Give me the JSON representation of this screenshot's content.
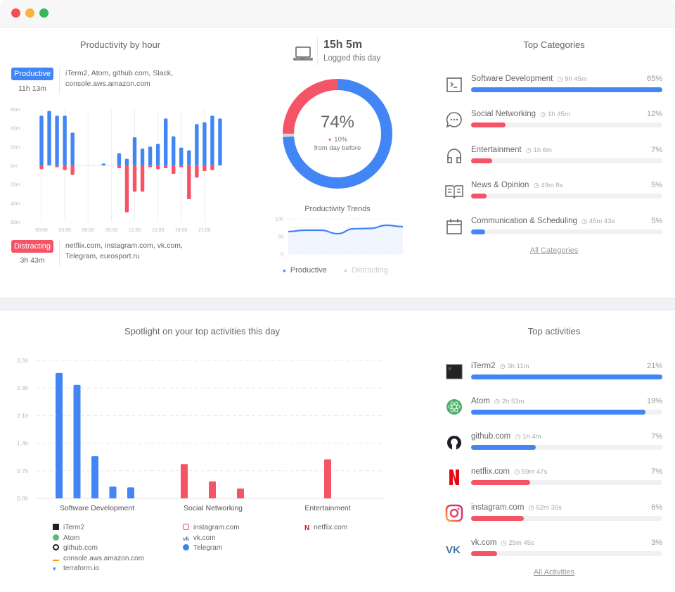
{
  "colors": {
    "productive": "#4285f4",
    "distracting": "#f55466",
    "track": "#f1f1f1",
    "neutral": "#d6d6d6"
  },
  "window": {
    "controls": [
      "close",
      "minimize",
      "maximize"
    ]
  },
  "productivity_by_hour": {
    "title": "Productivity by hour",
    "productive": {
      "label": "Productive",
      "time": "11h 13m",
      "apps": [
        "iTerm2, Atom, github.com, Slack,",
        "console.aws.amazon.com"
      ]
    },
    "distracting": {
      "label": "Distracting",
      "time": "3h 43m",
      "apps": [
        "netflix.com, instagram.com, vk.com,",
        "Telegram, eurosport.ru"
      ]
    }
  },
  "summary": {
    "icon": "laptop-icon",
    "logged_time": "15h 5m",
    "logged_label": "Logged this day",
    "percent": "74%",
    "change": "10%",
    "change_direction": "down",
    "change_label": "from day before",
    "donut": {
      "productive": 74,
      "distracting": 25,
      "neutral": 1
    }
  },
  "trends": {
    "title": "Productivity Trends",
    "legend": [
      {
        "label": "Productive",
        "active": true
      },
      {
        "label": "Distracting",
        "active": false
      }
    ]
  },
  "top_categories": {
    "title": "Top Categories",
    "items": [
      {
        "name": "Software Development",
        "time": "9h 45m",
        "percent": "65%",
        "fill": 100,
        "type": "productive",
        "icon": "terminal-icon"
      },
      {
        "name": "Social Networking",
        "time": "1h 45m",
        "percent": "12%",
        "fill": 18,
        "type": "distracting",
        "icon": "chat-bubble-icon"
      },
      {
        "name": "Entertainment",
        "time": "1h 6m",
        "percent": "7%",
        "fill": 11,
        "type": "distracting",
        "icon": "headphones-icon"
      },
      {
        "name": "News & Opinion",
        "time": "49m 8s",
        "percent": "5%",
        "fill": 8,
        "type": "distracting",
        "icon": "book-icon"
      },
      {
        "name": "Communication & Scheduling",
        "time": "45m 43s",
        "percent": "5%",
        "fill": 7.5,
        "type": "productive",
        "icon": "calendar-icon"
      }
    ],
    "link": "All Categories"
  },
  "spotlight": {
    "title": "Spotlight on your top activities this day",
    "legend_groups": [
      [
        {
          "label": "iTerm2",
          "icon": "iterm-icon"
        },
        {
          "label": "Atom",
          "icon": "atom-icon"
        },
        {
          "label": "github.com",
          "icon": "github-icon"
        },
        {
          "label": "console.aws.amazon.com",
          "icon": "aws-icon"
        },
        {
          "label": "terraform.io",
          "icon": "terraform-icon"
        }
      ],
      [
        {
          "label": "instagram.com",
          "icon": "instagram-icon"
        },
        {
          "label": "vk.com",
          "icon": "vk-icon"
        },
        {
          "label": "Telegram",
          "icon": "telegram-icon"
        }
      ],
      [
        {
          "label": "netflix.com",
          "icon": "netflix-icon"
        }
      ]
    ]
  },
  "top_activities": {
    "title": "Top activities",
    "items": [
      {
        "name": "iTerm2",
        "time": "3h 11m",
        "percent": "21%",
        "fill": 100,
        "type": "productive",
        "icon": "iterm-icon"
      },
      {
        "name": "Atom",
        "time": "2h 53m",
        "percent": "19%",
        "fill": 91,
        "type": "productive",
        "icon": "atom-icon"
      },
      {
        "name": "github.com",
        "time": "1h 4m",
        "percent": "7%",
        "fill": 34,
        "type": "productive",
        "icon": "github-icon"
      },
      {
        "name": "netflix.com",
        "time": "59m 47s",
        "percent": "7%",
        "fill": 31,
        "type": "distracting",
        "icon": "netflix-icon"
      },
      {
        "name": "instagram.com",
        "time": "52m 35s",
        "percent": "6%",
        "fill": 27.5,
        "type": "distracting",
        "icon": "instagram-icon"
      },
      {
        "name": "vk.com",
        "time": "25m 45s",
        "percent": "3%",
        "fill": 13.5,
        "type": "distracting",
        "icon": "vk-icon"
      }
    ],
    "link": "All Activities"
  },
  "chart_data": [
    {
      "type": "bar",
      "title": "Productivity by hour",
      "x": [
        0,
        1,
        2,
        3,
        4,
        5,
        6,
        7,
        8,
        9,
        10,
        11,
        12,
        13,
        14,
        15,
        16,
        17,
        18,
        19,
        20,
        21,
        22,
        23
      ],
      "xticks": [
        "00:00",
        "03:00",
        "06:00",
        "09:00",
        "12:00",
        "15:00",
        "18:00",
        "21:00"
      ],
      "yticks": [
        "60m",
        "40m",
        "20m",
        "0m",
        "20m",
        "40m",
        "60m"
      ],
      "ylim": [
        -60,
        60
      ],
      "ylabel": "minutes",
      "series": [
        {
          "name": "Productive",
          "values": [
            53,
            58,
            53,
            53,
            35,
            0,
            0,
            0,
            2,
            0,
            13,
            7,
            30,
            18,
            20,
            23,
            50,
            31,
            19,
            16,
            44,
            46,
            53,
            50
          ]
        },
        {
          "name": "Distracting",
          "values": [
            4,
            0,
            2,
            5,
            10,
            0,
            0,
            0,
            0,
            0,
            3,
            50,
            28,
            28,
            2,
            4,
            3,
            9,
            2,
            36,
            13,
            6,
            5,
            0
          ]
        }
      ]
    },
    {
      "type": "area",
      "title": "Productivity Trends",
      "x": [
        1,
        2,
        3,
        4,
        5,
        6,
        7,
        8
      ],
      "yticks": [
        "100",
        "50",
        "0"
      ],
      "ylim": [
        0,
        100
      ],
      "series": [
        {
          "name": "Productive",
          "values": [
            64,
            68,
            68,
            58,
            72,
            73,
            82,
            78
          ]
        }
      ]
    },
    {
      "type": "bar",
      "title": "Spotlight on your top activities this day",
      "categories": [
        "Software Development",
        "Social Networking",
        "Entertainment"
      ],
      "yticks": [
        "3.5h",
        "2.8h",
        "2.1h",
        "1.4h",
        "0.7h",
        "0.0h"
      ],
      "ylim": [
        0,
        3.5
      ],
      "ylabel": "hours",
      "groups": [
        {
          "category": "Software Development",
          "type": "productive",
          "labels": [
            "iTerm2",
            "Atom",
            "github.com",
            "console.aws.amazon.com",
            "terraform.io"
          ],
          "values": [
            3.18,
            2.88,
            1.07,
            0.3,
            0.28
          ]
        },
        {
          "category": "Social Networking",
          "type": "distracting",
          "labels": [
            "instagram.com",
            "vk.com",
            "Telegram"
          ],
          "values": [
            0.87,
            0.43,
            0.25
          ]
        },
        {
          "category": "Entertainment",
          "type": "distracting",
          "labels": [
            "netflix.com"
          ],
          "values": [
            0.99
          ]
        }
      ]
    }
  ]
}
